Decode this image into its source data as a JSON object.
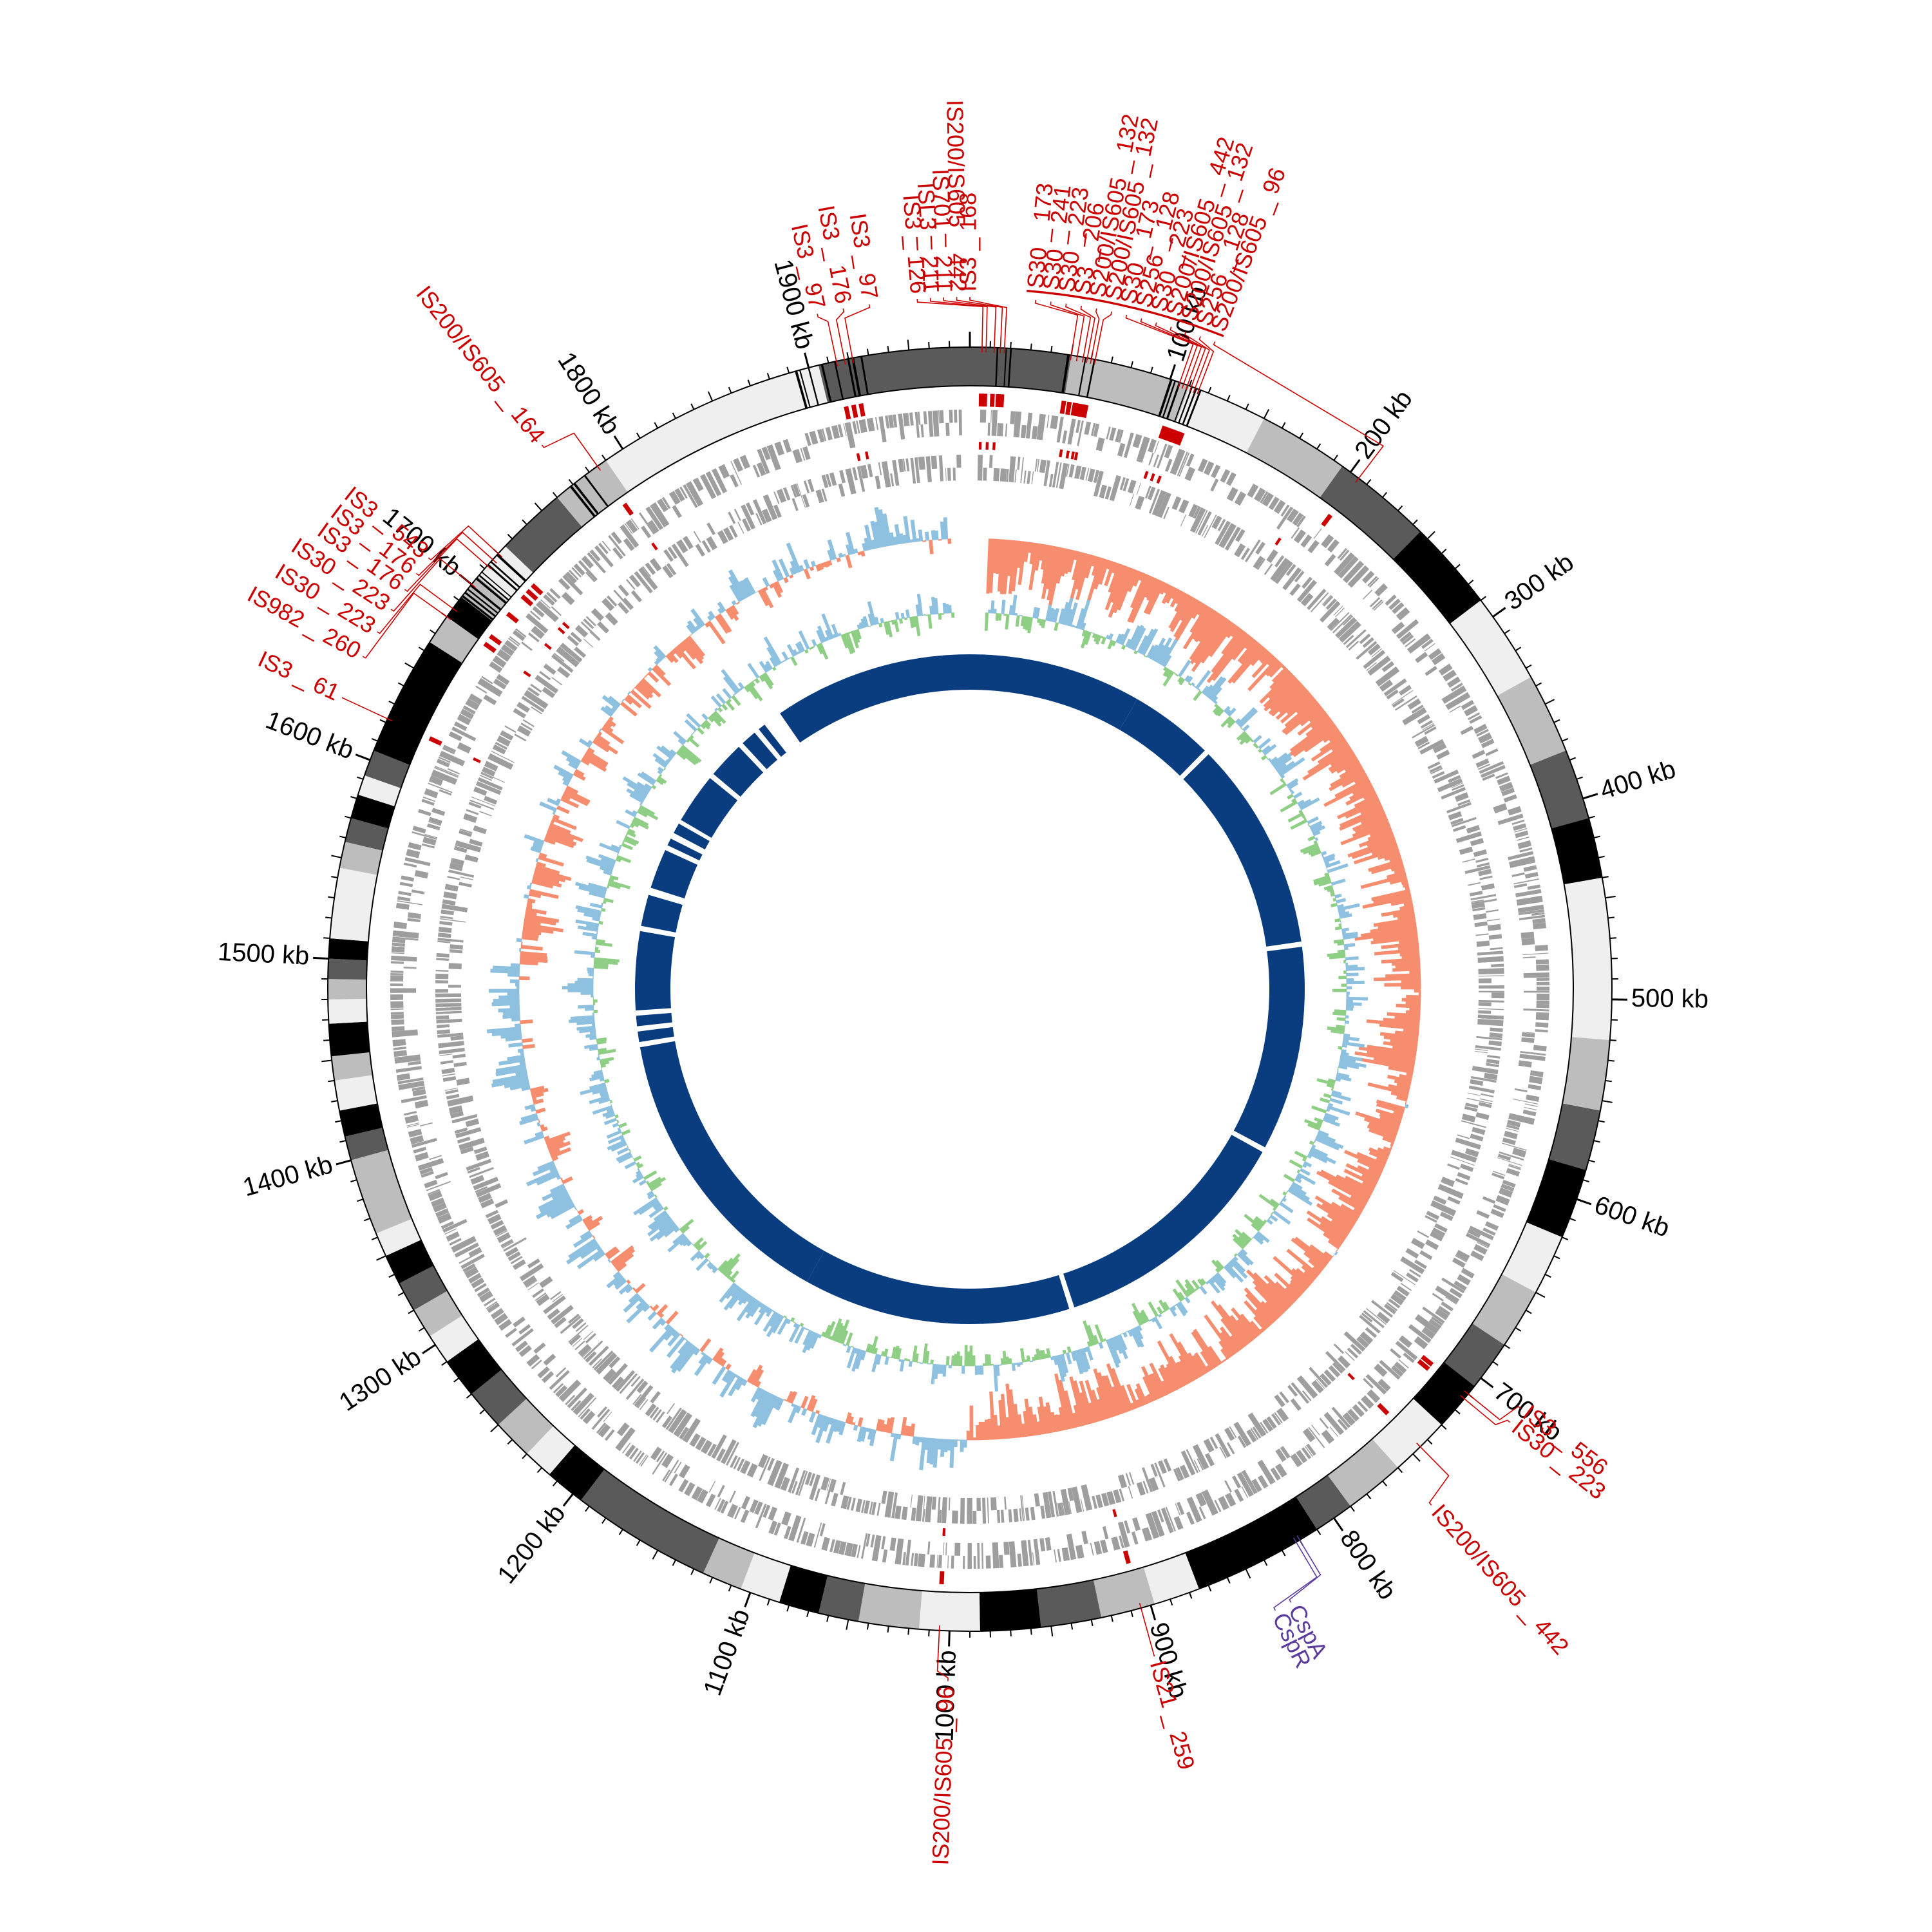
{
  "genome": {
    "length_kb": 1980,
    "tick_labels": [
      {
        "kb": 100,
        "text": "100 kb"
      },
      {
        "kb": 200,
        "text": "200 kb"
      },
      {
        "kb": 300,
        "text": "300 kb"
      },
      {
        "kb": 400,
        "text": "400 kb"
      },
      {
        "kb": 500,
        "text": "500 kb"
      },
      {
        "kb": 600,
        "text": "600 kb"
      },
      {
        "kb": 700,
        "text": "700 kb"
      },
      {
        "kb": 800,
        "text": "800 kb"
      },
      {
        "kb": 900,
        "text": "900 kb"
      },
      {
        "kb": 1000,
        "text": "1000 kb"
      },
      {
        "kb": 1100,
        "text": "1100 kb"
      },
      {
        "kb": 1200,
        "text": "1200 kb"
      },
      {
        "kb": 1300,
        "text": "1300 kb"
      },
      {
        "kb": 1400,
        "text": "1400 kb"
      },
      {
        "kb": 1500,
        "text": "1500 kb"
      },
      {
        "kb": 1600,
        "text": "1600 kb"
      },
      {
        "kb": 1700,
        "text": "1700 kb"
      },
      {
        "kb": 1800,
        "text": "1800 kb"
      },
      {
        "kb": 1900,
        "text": "1900 kb"
      }
    ]
  },
  "ideogram_bands": [
    {
      "start": 0,
      "end": 50,
      "shade": "#5a5a5a"
    },
    {
      "start": 50,
      "end": 110,
      "shade": "#bdbdbd"
    },
    {
      "start": 110,
      "end": 150,
      "shade": "#efefef"
    },
    {
      "start": 150,
      "end": 195,
      "shade": "#bdbdbd"
    },
    {
      "start": 195,
      "end": 245,
      "shade": "#5a5a5a"
    },
    {
      "start": 245,
      "end": 290,
      "shade": "#000000"
    },
    {
      "start": 290,
      "end": 335,
      "shade": "#efefef"
    },
    {
      "start": 335,
      "end": 375,
      "shade": "#bdbdbd"
    },
    {
      "start": 375,
      "end": 410,
      "shade": "#5a5a5a"
    },
    {
      "start": 410,
      "end": 440,
      "shade": "#000000"
    },
    {
      "start": 440,
      "end": 520,
      "shade": "#efefef"
    },
    {
      "start": 520,
      "end": 555,
      "shade": "#bdbdbd"
    },
    {
      "start": 555,
      "end": 585,
      "shade": "#5a5a5a"
    },
    {
      "start": 585,
      "end": 620,
      "shade": "#000000"
    },
    {
      "start": 620,
      "end": 650,
      "shade": "#efefef"
    },
    {
      "start": 650,
      "end": 680,
      "shade": "#bdbdbd"
    },
    {
      "start": 680,
      "end": 705,
      "shade": "#5a5a5a"
    },
    {
      "start": 705,
      "end": 730,
      "shade": "#000000"
    },
    {
      "start": 730,
      "end": 760,
      "shade": "#efefef"
    },
    {
      "start": 760,
      "end": 790,
      "shade": "#bdbdbd"
    },
    {
      "start": 790,
      "end": 810,
      "shade": "#5a5a5a"
    },
    {
      "start": 810,
      "end": 875,
      "shade": "#000000"
    },
    {
      "start": 875,
      "end": 898,
      "shade": "#efefef"
    },
    {
      "start": 898,
      "end": 925,
      "shade": "#bdbdbd"
    },
    {
      "start": 925,
      "end": 955,
      "shade": "#5a5a5a"
    },
    {
      "start": 955,
      "end": 985,
      "shade": "#000000"
    },
    {
      "start": 985,
      "end": 1015,
      "shade": "#efefef"
    },
    {
      "start": 1015,
      "end": 1045,
      "shade": "#bdbdbd"
    },
    {
      "start": 1045,
      "end": 1065,
      "shade": "#5a5a5a"
    },
    {
      "start": 1065,
      "end": 1085,
      "shade": "#000000"
    },
    {
      "start": 1085,
      "end": 1105,
      "shade": "#efefef"
    },
    {
      "start": 1105,
      "end": 1125,
      "shade": "#bdbdbd"
    },
    {
      "start": 1125,
      "end": 1195,
      "shade": "#5a5a5a"
    },
    {
      "start": 1195,
      "end": 1215,
      "shade": "#000000"
    },
    {
      "start": 1215,
      "end": 1230,
      "shade": "#efefef"
    },
    {
      "start": 1230,
      "end": 1250,
      "shade": "#bdbdbd"
    },
    {
      "start": 1250,
      "end": 1270,
      "shade": "#5a5a5a"
    },
    {
      "start": 1270,
      "end": 1290,
      "shade": "#000000"
    },
    {
      "start": 1290,
      "end": 1305,
      "shade": "#efefef"
    },
    {
      "start": 1305,
      "end": 1320,
      "shade": "#bdbdbd"
    },
    {
      "start": 1320,
      "end": 1335,
      "shade": "#5a5a5a"
    },
    {
      "start": 1335,
      "end": 1350,
      "shade": "#000000"
    },
    {
      "start": 1350,
      "end": 1362,
      "shade": "#efefef"
    },
    {
      "start": 1362,
      "end": 1400,
      "shade": "#bdbdbd"
    },
    {
      "start": 1400,
      "end": 1412,
      "shade": "#5a5a5a"
    },
    {
      "start": 1412,
      "end": 1425,
      "shade": "#000000"
    },
    {
      "start": 1425,
      "end": 1440,
      "shade": "#efefef"
    },
    {
      "start": 1440,
      "end": 1452,
      "shade": "#bdbdbd"
    },
    {
      "start": 1452,
      "end": 1468,
      "shade": "#000000"
    },
    {
      "start": 1468,
      "end": 1480,
      "shade": "#efefef"
    },
    {
      "start": 1480,
      "end": 1490,
      "shade": "#bdbdbd"
    },
    {
      "start": 1490,
      "end": 1500,
      "shade": "#5a5a5a"
    },
    {
      "start": 1500,
      "end": 1510,
      "shade": "#000000"
    },
    {
      "start": 1510,
      "end": 1545,
      "shade": "#efefef"
    },
    {
      "start": 1545,
      "end": 1558,
      "shade": "#bdbdbd"
    },
    {
      "start": 1558,
      "end": 1570,
      "shade": "#5a5a5a"
    },
    {
      "start": 1570,
      "end": 1582,
      "shade": "#000000"
    },
    {
      "start": 1582,
      "end": 1592,
      "shade": "#efefef"
    },
    {
      "start": 1592,
      "end": 1605,
      "shade": "#5a5a5a"
    },
    {
      "start": 1605,
      "end": 1665,
      "shade": "#000000"
    },
    {
      "start": 1665,
      "end": 1680,
      "shade": "#bdbdbd"
    },
    {
      "start": 1680,
      "end": 1692,
      "shade": "#000000"
    },
    {
      "start": 1692,
      "end": 1705,
      "shade": "#bdbdbd"
    },
    {
      "start": 1705,
      "end": 1725,
      "shade": "#efefef"
    },
    {
      "start": 1725,
      "end": 1760,
      "shade": "#5a5a5a"
    },
    {
      "start": 1760,
      "end": 1790,
      "shade": "#bdbdbd"
    },
    {
      "start": 1790,
      "end": 1840,
      "shade": "#efefef"
    },
    {
      "start": 1840,
      "end": 1905,
      "shade": "#efefef"
    },
    {
      "start": 1905,
      "end": 1980,
      "shade": "#5a5a5a"
    }
  ],
  "gc_skew_colors": {
    "positive": "#8ec0e0",
    "negative": "#f58d6e"
  },
  "gc_content_colors": {
    "positive": "#8ec0e0",
    "negative": "#8fce85"
  },
  "cds_color": "#9e9e9e",
  "is_marker_color": "#cc0000",
  "blast_color": "#0a3d80",
  "blast_blocks": [
    {
      "start": 0,
      "end": 165
    },
    {
      "start": 165,
      "end": 245
    },
    {
      "start": 250,
      "end": 450
    },
    {
      "start": 455,
      "end": 650
    },
    {
      "start": 655,
      "end": 890
    },
    {
      "start": 895,
      "end": 1150
    },
    {
      "start": 1150,
      "end": 1430
    },
    {
      "start": 1435,
      "end": 1445
    },
    {
      "start": 1450,
      "end": 1460
    },
    {
      "start": 1465,
      "end": 1540
    },
    {
      "start": 1545,
      "end": 1575
    },
    {
      "start": 1582,
      "end": 1620
    },
    {
      "start": 1625,
      "end": 1632
    },
    {
      "start": 1638,
      "end": 1648
    },
    {
      "start": 1652,
      "end": 1700
    },
    {
      "start": 1705,
      "end": 1740
    },
    {
      "start": 1745,
      "end": 1760
    },
    {
      "start": 1765,
      "end": 1772
    },
    {
      "start": 1790,
      "end": 1980
    }
  ],
  "is_elements": [
    {
      "label": "IS3 _ 126",
      "kb": 6,
      "label_kb": 1956
    },
    {
      "label": "ISL3 _ 211",
      "kb": 8,
      "label_kb": 1962
    },
    {
      "label": "IS701 _ 211",
      "kb": 12,
      "label_kb": 1968
    },
    {
      "label": "IS200/IS605 _ 442",
      "kb": 15,
      "label_kb": 1974
    },
    {
      "label": "IS3 _ 168",
      "kb": 17,
      "label_kb": 1980
    },
    {
      "label": "IS30 _ 173",
      "kb": 50,
      "label_kb": 30
    },
    {
      "label": "IS30 _ 241",
      "kb": 53,
      "label_kb": 37
    },
    {
      "label": "IS30 _ 223",
      "kb": 56,
      "label_kb": 44
    },
    {
      "label": "IS3 _ 206",
      "kb": 58,
      "label_kb": 51
    },
    {
      "label": "IS200/IS605 _ 132",
      "kb": 60,
      "label_kb": 58
    },
    {
      "label": "IS200/IS605 _ 132",
      "kb": 62,
      "label_kb": 65
    },
    {
      "label": "IS30 _ 173",
      "kb": 105,
      "label_kb": 72
    },
    {
      "label": "IS256 _ 128",
      "kb": 107,
      "label_kb": 79
    },
    {
      "label": "IS30 _ 223",
      "kb": 109,
      "label_kb": 86
    },
    {
      "label": "IS200/IS605 _ 442",
      "kb": 111,
      "label_kb": 93
    },
    {
      "label": "IS200/IS605 _ 132",
      "kb": 113,
      "label_kb": 100
    },
    {
      "label": "IS256 _ 128",
      "kb": 115,
      "label_kb": 107
    },
    {
      "label": "IS200/IS605 _ 96",
      "kb": 205,
      "label_kb": 114
    },
    {
      "label": "IS3 _ 556",
      "kb": 710,
      "label_kb": 700
    },
    {
      "label": "IS30 _ 223",
      "kb": 713,
      "label_kb": 708
    },
    {
      "label": "IS200/IS605 _ 442",
      "kb": 745,
      "label_kb": 760
    },
    {
      "label": "IS21 _ 259",
      "kb": 905,
      "label_kb": 905
    },
    {
      "label": "IS200/IS605 _ 96",
      "kb": 1005,
      "label_kb": 1000
    },
    {
      "label": "IS3 _ 61",
      "kb": 1622,
      "label_kb": 1622
    },
    {
      "label": "IS982 _ 260",
      "kb": 1680,
      "label_kb": 1643
    },
    {
      "label": "IS30 _ 223",
      "kb": 1685,
      "label_kb": 1656
    },
    {
      "label": "IS30 _ 223",
      "kb": 1700,
      "label_kb": 1668
    },
    {
      "label": "IS3 _ 176",
      "kb": 1712,
      "label_kb": 1679
    },
    {
      "label": "IS3 _ 176",
      "kb": 1716,
      "label_kb": 1688
    },
    {
      "label": "IS3 _ 543",
      "kb": 1720,
      "label_kb": 1697
    },
    {
      "label": "IS200/IS605 _ 164",
      "kb": 1785,
      "label_kb": 1770
    },
    {
      "label": "IS3 _ 97",
      "kb": 1914,
      "label_kb": 1910
    },
    {
      "label": "IS3 _ 176",
      "kb": 1918,
      "label_kb": 1922
    },
    {
      "label": "IS3 _ 97",
      "kb": 1922,
      "label_kb": 1934
    }
  ],
  "gene_labels": [
    {
      "label": "CspA",
      "kb": 820,
      "label_kb": 838
    },
    {
      "label": "CspR",
      "kb": 822,
      "label_kb": 846
    }
  ]
}
